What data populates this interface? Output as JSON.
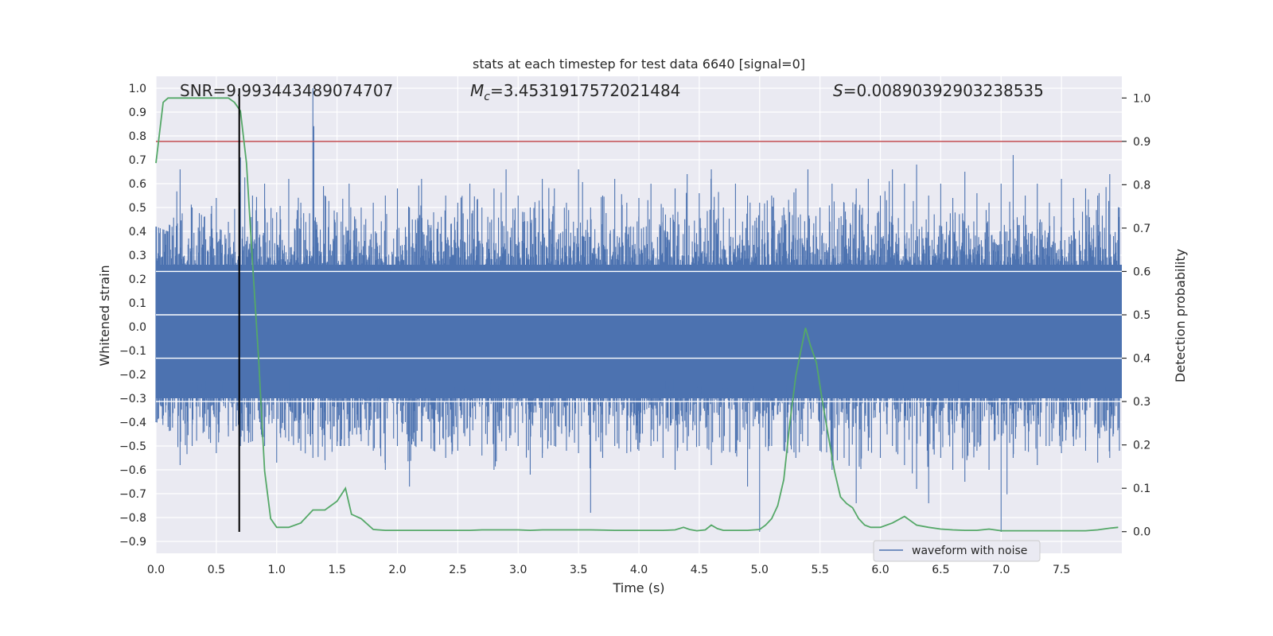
{
  "chart_data": {
    "type": "line",
    "title": "stats at each timestep for test data 6640 [signal=0]",
    "xlabel": "Time (s)",
    "ylabel_left": "Whitened strain",
    "ylabel_right": "Detection probability",
    "xlim": [
      0.0,
      8.0
    ],
    "ylim_left": [
      -0.95,
      1.05
    ],
    "ylim_right": [
      -0.05,
      1.05
    ],
    "x_ticks": [
      0.0,
      0.5,
      1.0,
      1.5,
      2.0,
      2.5,
      3.0,
      3.5,
      4.0,
      4.5,
      5.0,
      5.5,
      6.0,
      6.5,
      7.0,
      7.5
    ],
    "x_tick_labels": [
      "0.0",
      "0.5",
      "1.0",
      "1.5",
      "2.0",
      "2.5",
      "3.0",
      "3.5",
      "4.0",
      "4.5",
      "5.0",
      "5.5",
      "6.0",
      "6.5",
      "7.0",
      "7.5"
    ],
    "y_left_ticks": [
      -0.9,
      -0.8,
      -0.7,
      -0.6,
      -0.5,
      -0.4,
      -0.3,
      -0.2,
      -0.1,
      0.0,
      0.1,
      0.2,
      0.3,
      0.4,
      0.5,
      0.6,
      0.7,
      0.8,
      0.9,
      1.0
    ],
    "y_left_tick_labels": [
      "−0.9",
      "−0.8",
      "−0.7",
      "−0.6",
      "−0.5",
      "−0.4",
      "−0.3",
      "−0.2",
      "−0.1",
      "0.0",
      "0.1",
      "0.2",
      "0.3",
      "0.4",
      "0.5",
      "0.6",
      "0.7",
      "0.8",
      "0.9",
      "1.0"
    ],
    "y_right_ticks": [
      0.0,
      0.1,
      0.2,
      0.3,
      0.4,
      0.5,
      0.6,
      0.7,
      0.8,
      0.9,
      1.0
    ],
    "y_right_tick_labels": [
      "0.0",
      "0.1",
      "0.2",
      "0.3",
      "0.4",
      "0.5",
      "0.6",
      "0.7",
      "0.8",
      "0.9",
      "1.0"
    ],
    "grid": true,
    "annotations": {
      "snr": "SNR=9.993443489074707",
      "mc_symbol": "M",
      "mc_sub": "c",
      "mc_value": "=3.4531917572021484",
      "s_symbol": "S",
      "s_value": "=0.00890392903238535"
    },
    "threshold": {
      "axis": "right",
      "value": 0.9
    },
    "vertical_marker": {
      "x": 0.69,
      "y_range": [
        -0.86,
        1.0
      ]
    },
    "waveform_envelope": {
      "x": [
        0.0,
        0.1,
        0.2,
        0.3,
        0.4,
        0.5,
        0.6,
        0.7,
        0.8,
        0.9,
        1.0,
        1.1,
        1.2,
        1.3,
        1.4,
        1.5,
        1.6,
        1.7,
        1.8,
        1.9,
        2.0,
        2.1,
        2.2,
        2.3,
        2.4,
        2.5,
        2.6,
        2.7,
        2.8,
        2.9,
        3.0,
        3.1,
        3.2,
        3.3,
        3.4,
        3.5,
        3.6,
        3.7,
        3.8,
        3.9,
        4.0,
        4.1,
        4.2,
        4.3,
        4.4,
        4.5,
        4.6,
        4.7,
        4.8,
        4.9,
        5.0,
        5.1,
        5.2,
        5.3,
        5.4,
        5.5,
        5.6,
        5.7,
        5.8,
        5.9,
        6.0,
        6.1,
        6.2,
        6.3,
        6.4,
        6.5,
        6.6,
        6.7,
        6.8,
        6.9,
        7.0,
        7.1,
        7.2,
        7.3,
        7.4,
        7.5,
        7.6,
        7.7,
        7.8,
        7.9,
        7.98
      ],
      "upper": [
        0.42,
        0.4,
        0.66,
        0.5,
        0.46,
        0.54,
        0.44,
        0.71,
        0.55,
        0.6,
        0.48,
        0.62,
        0.52,
        1.0,
        0.55,
        0.48,
        0.6,
        0.5,
        0.52,
        0.55,
        0.58,
        0.5,
        0.62,
        0.48,
        0.55,
        0.52,
        0.6,
        0.5,
        0.58,
        0.66,
        0.55,
        0.5,
        0.62,
        0.58,
        0.52,
        0.66,
        0.5,
        0.55,
        0.62,
        0.52,
        0.54,
        0.6,
        0.5,
        0.58,
        0.64,
        0.56,
        0.66,
        0.5,
        0.6,
        0.55,
        0.52,
        0.55,
        0.5,
        0.58,
        0.66,
        0.5,
        0.6,
        0.52,
        0.58,
        0.62,
        0.55,
        0.66,
        0.6,
        0.68,
        0.55,
        0.6,
        0.54,
        0.65,
        0.56,
        0.52,
        0.6,
        0.72,
        0.55,
        0.6,
        0.52,
        0.62,
        0.54,
        0.58,
        0.55,
        0.64,
        0.5
      ],
      "lower": [
        -0.4,
        -0.42,
        -0.58,
        -0.5,
        -0.44,
        -0.53,
        -0.46,
        -0.5,
        -0.48,
        -0.5,
        -0.57,
        -0.48,
        -0.52,
        -0.55,
        -0.56,
        -0.5,
        -0.5,
        -0.48,
        -0.52,
        -0.6,
        -0.5,
        -0.67,
        -0.48,
        -0.52,
        -0.55,
        -0.52,
        -0.5,
        -0.54,
        -0.6,
        -0.52,
        -0.5,
        -0.62,
        -0.55,
        -0.5,
        -0.52,
        -0.53,
        -0.78,
        -0.55,
        -0.5,
        -0.53,
        -0.52,
        -0.5,
        -0.55,
        -0.6,
        -0.52,
        -0.5,
        -0.58,
        -0.52,
        -0.53,
        -0.67,
        -0.86,
        -0.5,
        -0.52,
        -0.55,
        -0.5,
        -0.52,
        -0.6,
        -0.55,
        -0.74,
        -0.52,
        -0.55,
        -0.5,
        -0.58,
        -0.68,
        -0.74,
        -0.55,
        -0.6,
        -0.65,
        -0.52,
        -0.6,
        -0.86,
        -0.55,
        -0.52,
        -0.58,
        -0.5,
        -0.53,
        -0.5,
        -0.52,
        -0.57,
        -0.55,
        -0.52
      ]
    },
    "series": [
      {
        "name": "waveform with noise",
        "axis": "left",
        "color": "#4c72b0"
      },
      {
        "axis": "right",
        "color": "#55a868",
        "x": [
          0.0,
          0.06,
          0.1,
          0.2,
          0.4,
          0.6,
          0.65,
          0.7,
          0.75,
          0.8,
          0.85,
          0.9,
          0.95,
          1.0,
          1.05,
          1.1,
          1.2,
          1.3,
          1.4,
          1.45,
          1.5,
          1.57,
          1.62,
          1.7,
          1.8,
          1.9,
          2.0,
          2.2,
          2.4,
          2.6,
          2.7,
          2.8,
          3.0,
          3.1,
          3.2,
          3.3,
          3.4,
          3.6,
          3.8,
          4.0,
          4.2,
          4.3,
          4.37,
          4.42,
          4.48,
          4.55,
          4.6,
          4.65,
          4.7,
          4.8,
          4.9,
          5.0,
          5.05,
          5.1,
          5.15,
          5.2,
          5.25,
          5.3,
          5.38,
          5.42,
          5.47,
          5.52,
          5.57,
          5.62,
          5.67,
          5.72,
          5.77,
          5.82,
          5.87,
          5.92,
          6.0,
          6.1,
          6.2,
          6.3,
          6.4,
          6.5,
          6.6,
          6.7,
          6.8,
          6.9,
          7.0,
          7.1,
          7.2,
          7.3,
          7.4,
          7.5,
          7.6,
          7.7,
          7.8,
          7.9,
          7.97
        ],
        "values": [
          0.85,
          0.99,
          1.0,
          1.0,
          1.0,
          1.0,
          0.99,
          0.97,
          0.85,
          0.62,
          0.4,
          0.14,
          0.03,
          0.01,
          0.01,
          0.01,
          0.02,
          0.05,
          0.05,
          0.06,
          0.07,
          0.1,
          0.04,
          0.03,
          0.005,
          0.003,
          0.003,
          0.003,
          0.003,
          0.003,
          0.004,
          0.004,
          0.004,
          0.003,
          0.004,
          0.004,
          0.004,
          0.004,
          0.003,
          0.003,
          0.003,
          0.004,
          0.01,
          0.005,
          0.002,
          0.004,
          0.015,
          0.007,
          0.003,
          0.003,
          0.003,
          0.005,
          0.015,
          0.03,
          0.06,
          0.12,
          0.25,
          0.36,
          0.47,
          0.43,
          0.39,
          0.3,
          0.22,
          0.14,
          0.08,
          0.065,
          0.055,
          0.03,
          0.015,
          0.01,
          0.01,
          0.02,
          0.035,
          0.015,
          0.01,
          0.006,
          0.004,
          0.003,
          0.003,
          0.006,
          0.002,
          0.002,
          0.002,
          0.002,
          0.002,
          0.002,
          0.002,
          0.002,
          0.004,
          0.008,
          0.01
        ]
      }
    ],
    "legend": {
      "placement": "lower-right",
      "entries": [
        "waveform with noise"
      ]
    },
    "colors": {
      "plot_bg": "#eaeaf2",
      "grid": "#ffffff",
      "threshold": "#c44e52",
      "marker": "#000000"
    }
  }
}
